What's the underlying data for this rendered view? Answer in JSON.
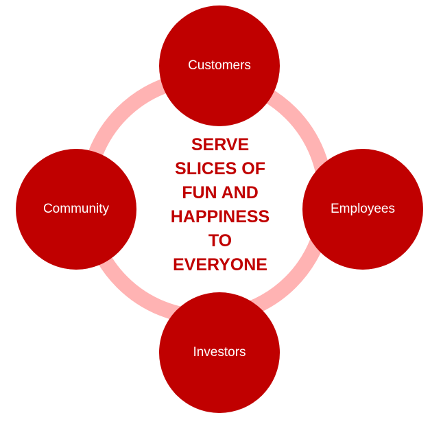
{
  "diagram": {
    "center_lines": [
      "SERVE",
      "SLICES OF",
      "FUN AND",
      "HAPPINESS",
      "TO",
      "EVERYONE"
    ],
    "nodes": {
      "top": "Customers",
      "right": "Employees",
      "bottom": "Investors",
      "left": "Community"
    },
    "colors": {
      "node_fill": "#c00000",
      "ring": "#ffb3b3",
      "center_text": "#c00000",
      "node_text": "#ffffff"
    }
  }
}
